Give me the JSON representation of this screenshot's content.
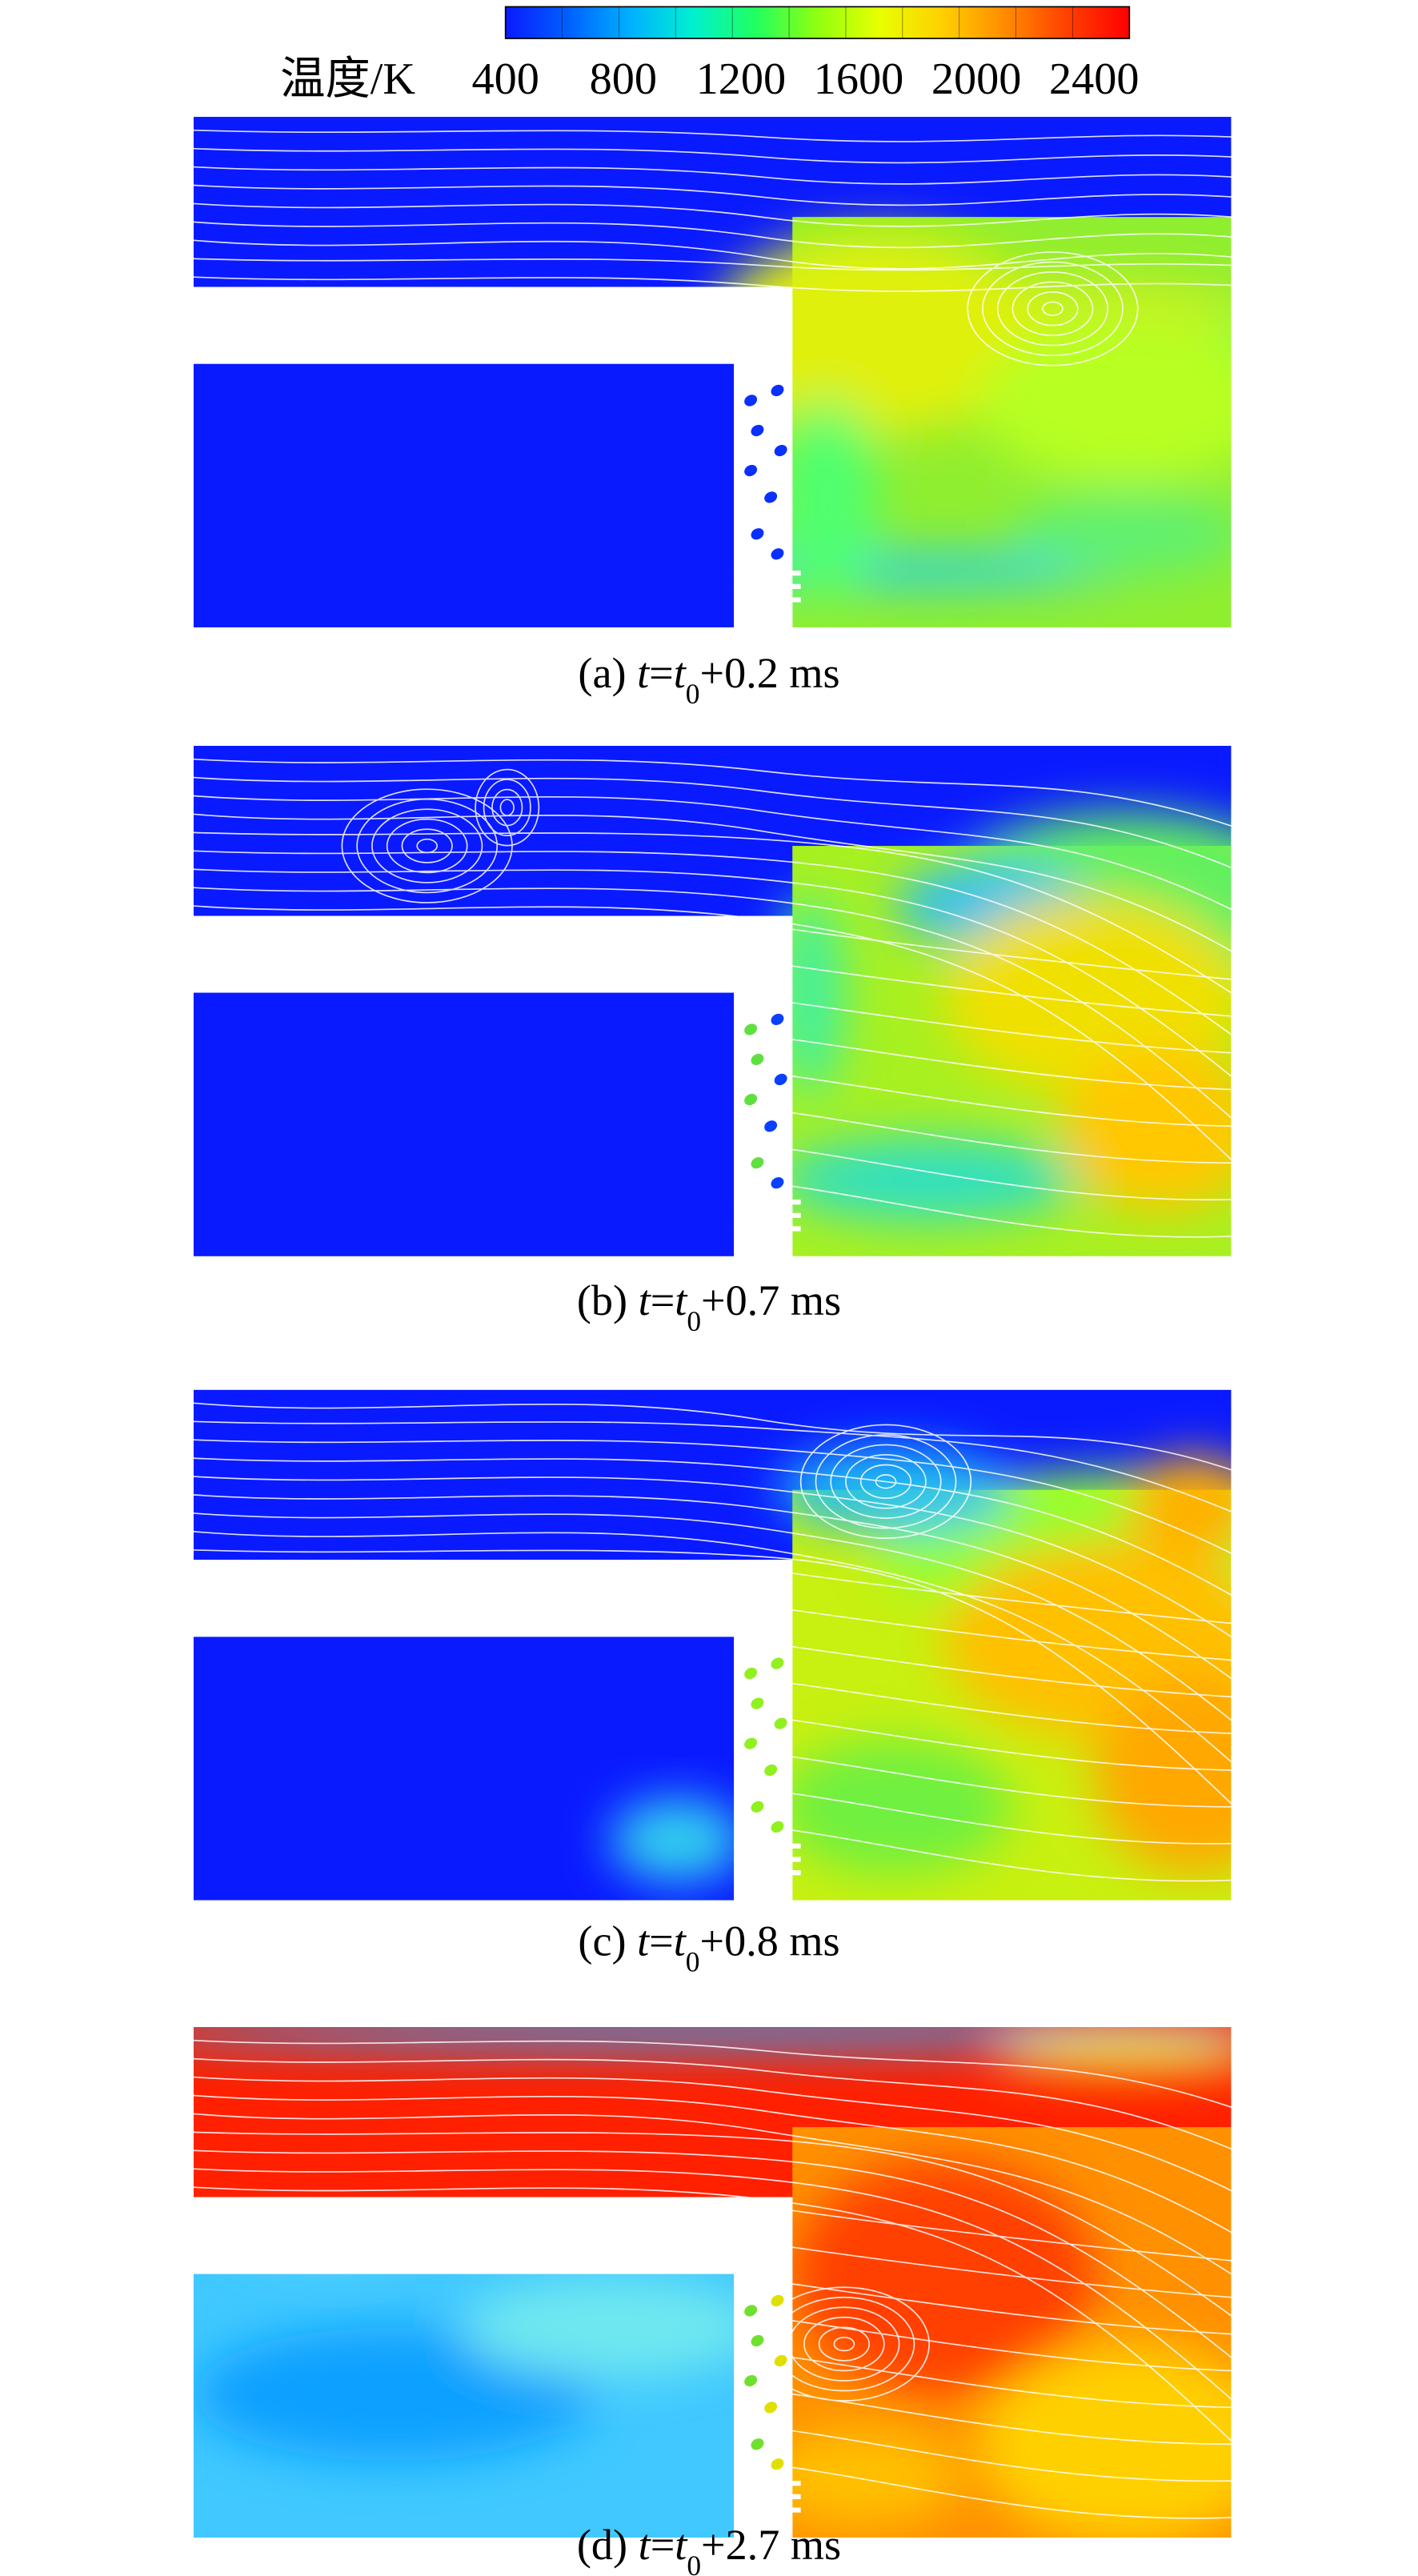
{
  "colorbar": {
    "label": "温度/K",
    "ticks": [
      400,
      800,
      1200,
      1600,
      2000,
      2400
    ],
    "range": [
      400,
      2520
    ],
    "colors": [
      "#0a1aff",
      "#0060ff",
      "#00b0ff",
      "#00f0d0",
      "#20ff60",
      "#90ff10",
      "#e8ff00",
      "#ffd000",
      "#ff8c00",
      "#ff4000",
      "#ff0000"
    ]
  },
  "captions": [
    [
      "(a) ",
      "t",
      "=",
      "t",
      "0",
      "+0.2 ms"
    ],
    [
      "(b) ",
      "t",
      "=",
      "t",
      "0",
      "+0.7 ms"
    ],
    [
      "(c) ",
      "t",
      "=",
      "t",
      "0",
      "+0.8 ms"
    ],
    [
      "(d) ",
      "t",
      "=",
      "t",
      "0",
      "+2.7 ms"
    ]
  ]
}
